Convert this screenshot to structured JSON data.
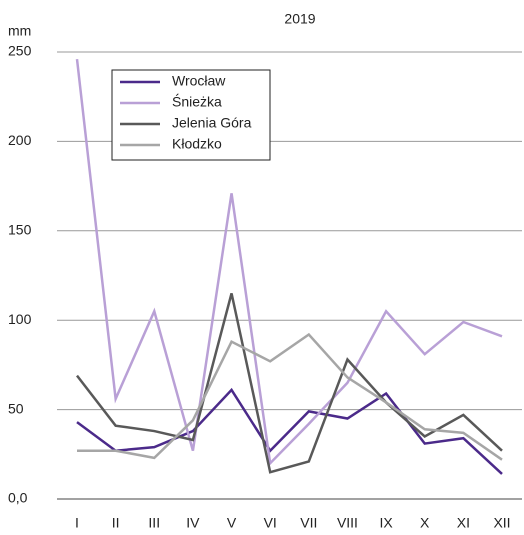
{
  "chart_data": {
    "type": "line",
    "title": "2019",
    "y_label": "mm",
    "categories": [
      "I",
      "II",
      "III",
      "IV",
      "V",
      "VI",
      "VII",
      "VIII",
      "IX",
      "X",
      "XI",
      "XII"
    ],
    "series": [
      {
        "name": "Wrocław",
        "color": "#4b2a8a",
        "values": [
          43,
          27,
          29,
          38,
          61,
          27,
          49,
          45,
          59,
          31,
          34,
          14
        ]
      },
      {
        "name": "Śnieżka",
        "color": "#b9a0d6",
        "values": [
          246,
          56,
          105,
          27,
          171,
          20,
          42,
          65,
          105,
          81,
          99,
          91
        ]
      },
      {
        "name": "Jelenia Góra",
        "color": "#595959",
        "values": [
          69,
          41,
          38,
          33,
          115,
          15,
          21,
          78,
          54,
          35,
          47,
          27
        ]
      },
      {
        "name": "Kłodzko",
        "color": "#a6a6a6",
        "values": [
          27,
          27,
          23,
          44,
          88,
          77,
          92,
          68,
          54,
          39,
          37,
          22
        ]
      }
    ],
    "ylim": [
      0,
      250
    ],
    "yticks": [
      {
        "value": 0,
        "label": "0,0"
      },
      50,
      100,
      150,
      200,
      250
    ],
    "grid": true
  }
}
